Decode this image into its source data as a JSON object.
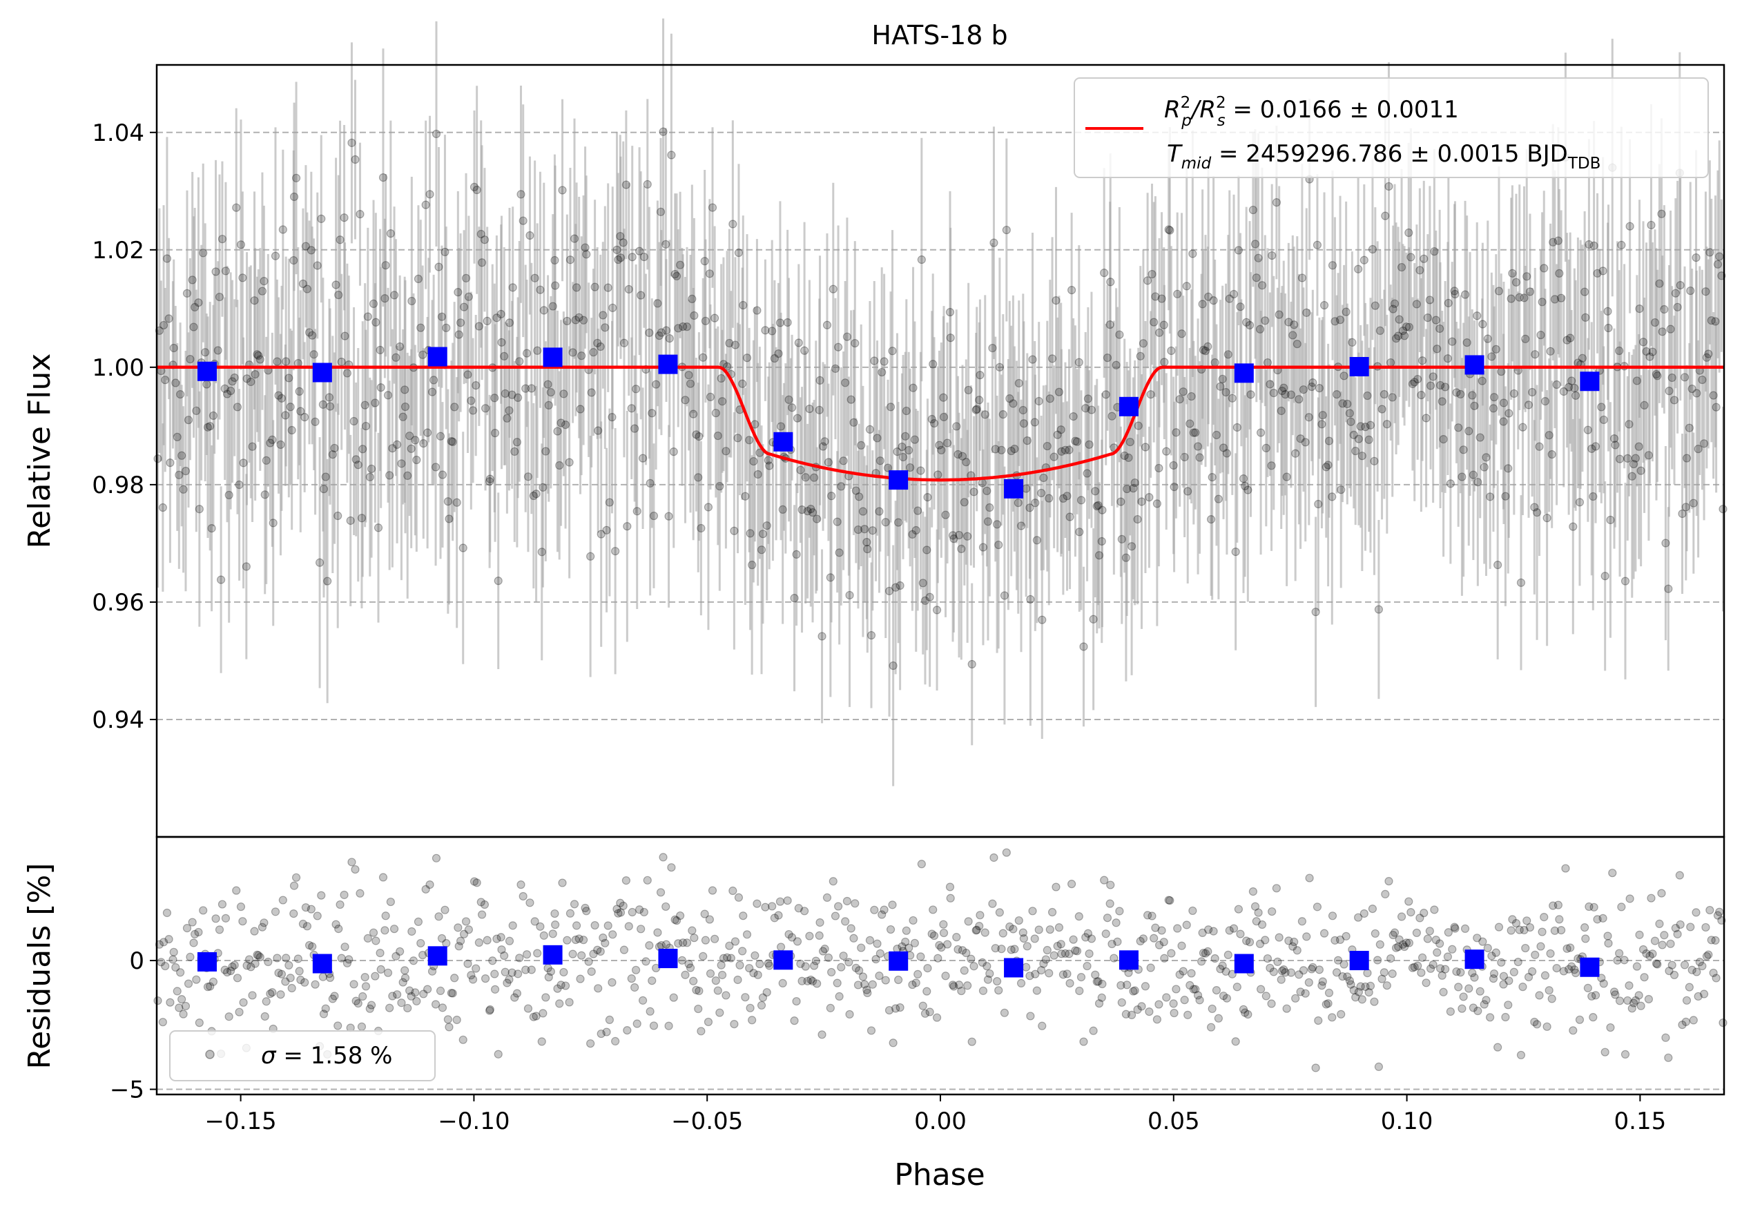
{
  "chart_data": [
    {
      "type": "scatter",
      "title": "HATS-18 b",
      "xlabel": "",
      "ylabel": "Relative Flux",
      "xlim": [
        -0.168,
        0.168
      ],
      "ylim": [
        0.92,
        1.0515
      ],
      "yticks": [
        0.94,
        0.96,
        0.98,
        1.0,
        1.02,
        1.04
      ],
      "ytick_labels": [
        "0.94",
        "0.96",
        "0.98",
        "1.00",
        "1.02",
        "1.04"
      ],
      "grid": "horizontal dashed",
      "legend_position": "upper right",
      "legend": {
        "line1_prefix": "R",
        "line1_sup1": "2",
        "line1_sub1": "p",
        "line1_mid": "/R",
        "line1_sup2": "2",
        "line1_sub2": "s",
        "line1_value": " = 0.0166 ± 0.0011",
        "line2_prefix": "T",
        "line2_sub": "mid",
        "line2_value": " = 2459296.786 ± 0.0015 BJD",
        "line2_unit_sub": "TDB"
      },
      "model_color": "#ff0000",
      "binned_color": "#0000ff",
      "raw_color": "#000000",
      "errorbar_color": "#a0a0a0",
      "model": {
        "name": "transit model",
        "baseline": 1.0,
        "depth": 0.0166,
        "t14_half": 0.0475,
        "t23_half": 0.0365,
        "center_flux": 0.9808,
        "t2_flux": 0.9852
      },
      "binned": {
        "x": [
          -0.1572,
          -0.1325,
          -0.1078,
          -0.0831,
          -0.0584,
          -0.0337,
          -0.009,
          0.0157,
          0.0404,
          0.0651,
          0.0898,
          0.1145,
          0.1392
        ],
        "y": [
          0.9993,
          0.9991,
          1.0018,
          1.0017,
          1.0005,
          0.9873,
          0.9808,
          0.9793,
          0.9933,
          0.999,
          1.0001,
          1.0004,
          0.9976
        ]
      },
      "raw_points": {
        "count": 960,
        "scatter": 0.0158
      }
    },
    {
      "type": "scatter",
      "title": "",
      "xlabel": "Phase",
      "ylabel": "Residuals [%]",
      "xlim": [
        -0.168,
        0.168
      ],
      "ylim": [
        -5.2,
        4.8
      ],
      "xticks": [
        -0.15,
        -0.1,
        -0.05,
        0.0,
        0.05,
        0.1,
        0.15
      ],
      "xtick_labels": [
        "−0.15",
        "−0.10",
        "−0.05",
        "0.00",
        "0.05",
        "0.10",
        "0.15"
      ],
      "yticks": [
        -5,
        0
      ],
      "ytick_labels": [
        "−5",
        "0"
      ],
      "grid": "horizontal dashed",
      "legend_position": "lower left",
      "legend": {
        "sigma_symbol": "σ",
        "sigma_text": " = 1.58 %"
      },
      "binned": {
        "x": [
          -0.1572,
          -0.1325,
          -0.1078,
          -0.0831,
          -0.0584,
          -0.0337,
          -0.009,
          0.0157,
          0.0404,
          0.0651,
          0.0898,
          0.1145,
          0.1392
        ],
        "y": [
          -0.05,
          -0.12,
          0.18,
          0.22,
          0.08,
          0.02,
          -0.02,
          -0.28,
          0.02,
          -0.12,
          0.0,
          0.05,
          -0.26
        ]
      },
      "raw_points": {
        "count": 960,
        "scatter": 1.58
      }
    }
  ]
}
